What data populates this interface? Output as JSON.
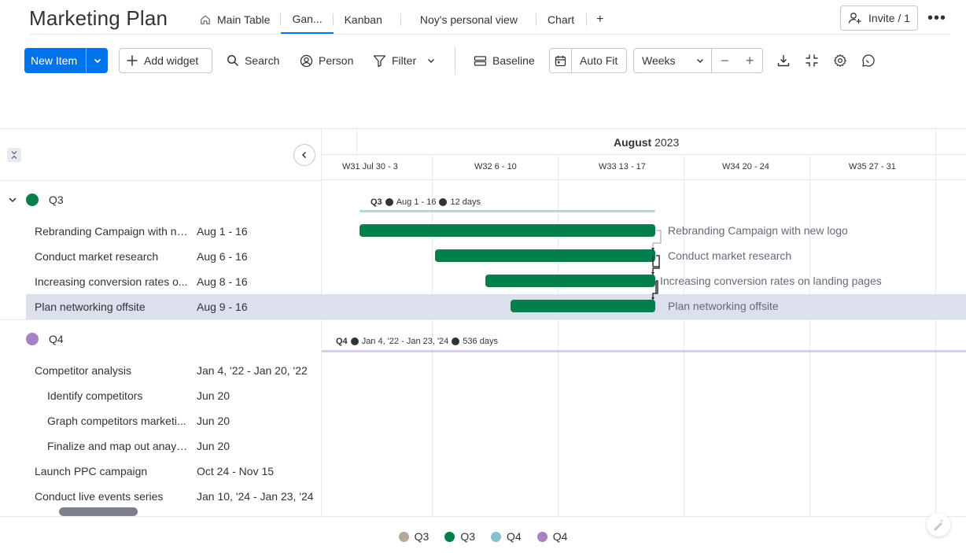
{
  "board": {
    "title": "Marketing Plan"
  },
  "tabs": [
    {
      "label": "Main Table",
      "icon": "home-icon"
    },
    {
      "label": "Gan..."
    },
    {
      "label": "Kanban"
    },
    {
      "label": "Noy's personal view"
    },
    {
      "label": "Chart"
    }
  ],
  "tab_add": "+",
  "header": {
    "invite_label": "Invite / 1",
    "more": "•••"
  },
  "toolbar": {
    "new_item": "New Item",
    "add_widget": "Add widget",
    "search": "Search",
    "person": "Person",
    "filter": "Filter",
    "baseline": "Baseline",
    "auto_fit": "Auto Fit",
    "weeks": "Weeks",
    "zoom_out": "−",
    "zoom_in": "+"
  },
  "timeline": {
    "month": "August",
    "year": "2023",
    "weeks": [
      "W31 Jul 30 - 3",
      "W32 6 - 10",
      "W33 13 - 17",
      "W34 20 - 24",
      "W35 27 - 31"
    ]
  },
  "groups": [
    {
      "name": "Q3",
      "color": "#037f4c",
      "summary": {
        "label": "Q3",
        "dates": "Aug 1 - 16",
        "duration": "12 days"
      },
      "items": [
        {
          "name": "Rebranding Campaign with ne...",
          "bar_label": "Rebranding Campaign with new logo",
          "dates": "Aug 1 - 16"
        },
        {
          "name": "Conduct market research",
          "bar_label": "Conduct market research",
          "dates": "Aug 6 - 16"
        },
        {
          "name": "Increasing conversion rates o...",
          "bar_label": "Increasing conversion rates on landing pages",
          "dates": "Aug 8 - 16"
        },
        {
          "name": "Plan networking offsite",
          "bar_label": "Plan networking offsite",
          "dates": "Aug 9 - 16"
        }
      ]
    },
    {
      "name": "Q4",
      "color": "#a782c3",
      "summary": {
        "label": "Q4",
        "dates": "Jan 4, '22 - Jan 23, '24",
        "duration": "536 days"
      },
      "items": [
        {
          "name": "Competitor analysis",
          "dates": "Jan 4, '22 - Jan 20, '22"
        },
        {
          "name": "Identify competitors",
          "dates": "Jun 20"
        },
        {
          "name": "Graph competitors marketi...",
          "dates": "Jun 20"
        },
        {
          "name": "Finalize and map out anaylsis",
          "dates": "Jun 20"
        },
        {
          "name": "Launch PPC campaign",
          "dates": "Oct 24 - Nov 15"
        },
        {
          "name": "Conduct live events series",
          "dates": "Jan 10, '24 - Jan 23, '24"
        }
      ]
    }
  ],
  "legend": [
    {
      "label": "Q3",
      "color": "#b5a99a"
    },
    {
      "label": "Q3",
      "color": "#037f4c"
    },
    {
      "label": "Q4",
      "color": "#85c1cf"
    },
    {
      "label": "Q4",
      "color": "#a782c3"
    }
  ]
}
